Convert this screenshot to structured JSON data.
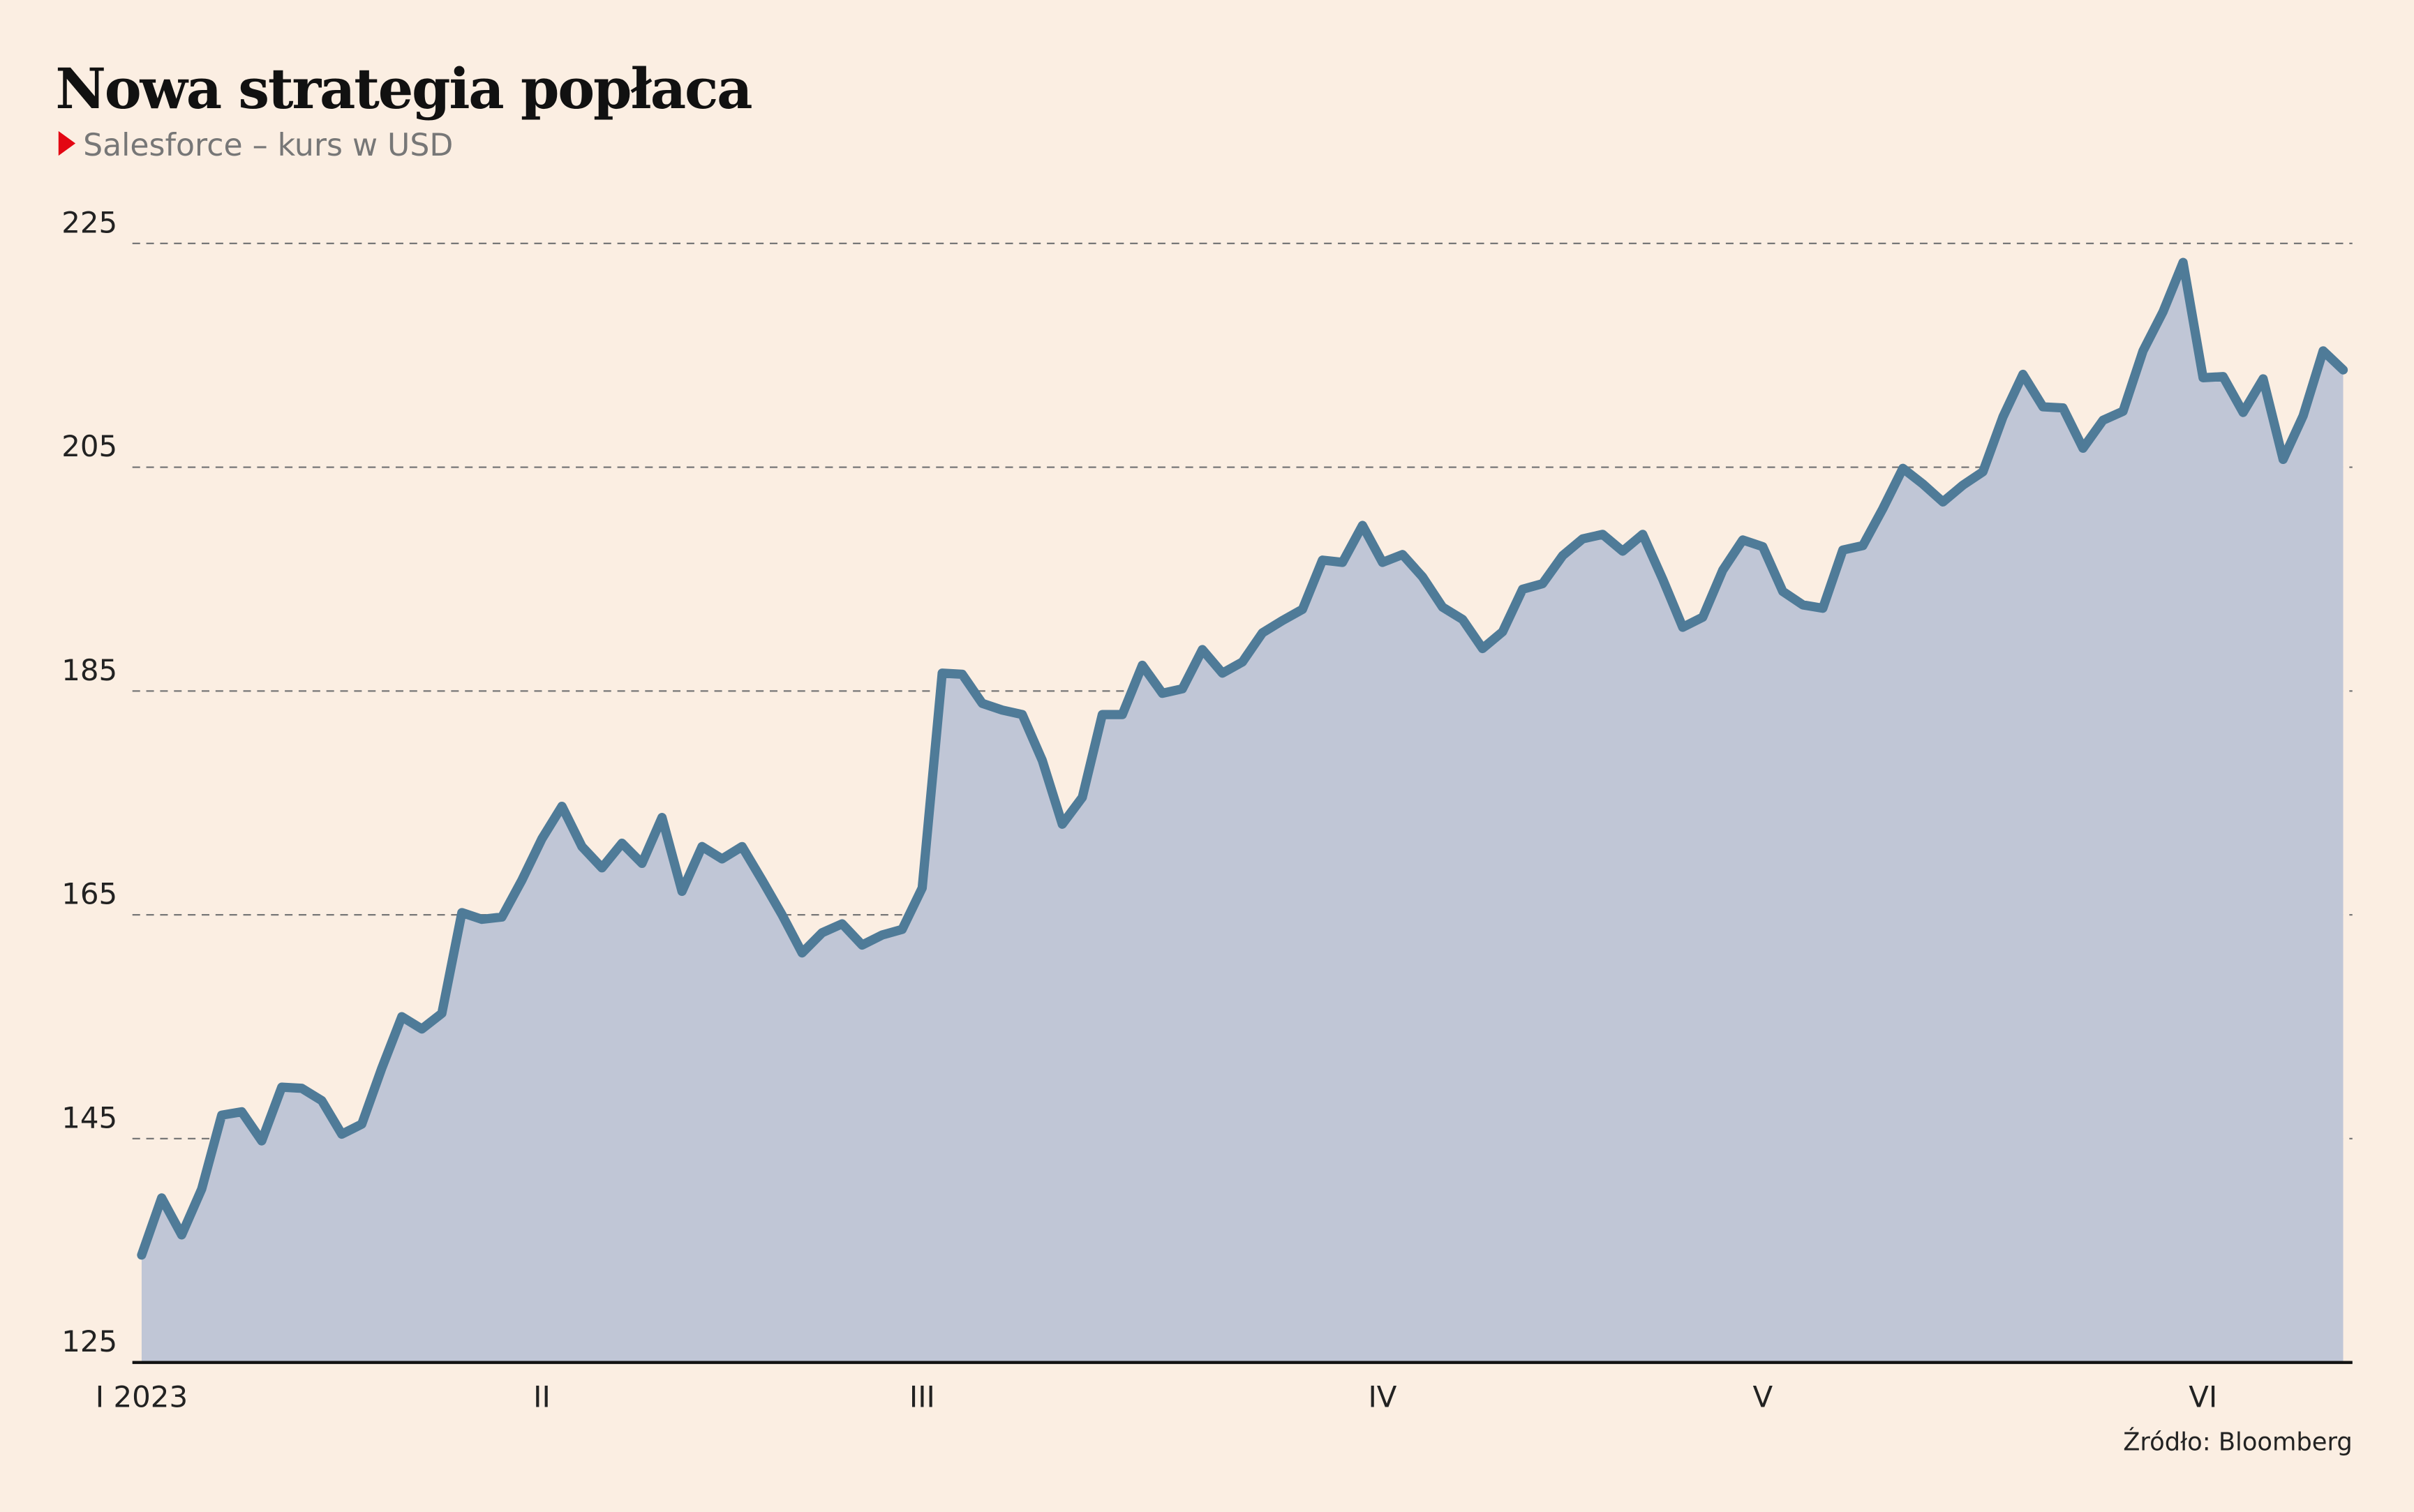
{
  "chart_data": {
    "type": "area",
    "title": "Nowa strategia popłaca",
    "subtitle": "Salesforce – kurs w USD",
    "source": "Źródło: Bloomberg",
    "categories": [
      "I 2023",
      null,
      null,
      null,
      null,
      null,
      null,
      null,
      null,
      null,
      null,
      null,
      null,
      null,
      null,
      null,
      null,
      null,
      null,
      null,
      "II",
      null,
      null,
      null,
      null,
      null,
      null,
      null,
      null,
      null,
      null,
      null,
      null,
      null,
      null,
      null,
      null,
      null,
      null,
      "III",
      null,
      null,
      null,
      null,
      null,
      null,
      null,
      null,
      null,
      null,
      null,
      null,
      null,
      null,
      null,
      null,
      null,
      null,
      null,
      null,
      null,
      null,
      "IV",
      null,
      null,
      null,
      null,
      null,
      null,
      null,
      null,
      null,
      null,
      null,
      null,
      null,
      null,
      null,
      null,
      null,
      null,
      "V",
      null,
      null,
      null,
      null,
      null,
      null,
      null,
      null,
      null,
      null,
      null,
      null,
      null,
      null,
      null,
      null,
      null,
      null,
      null,
      null,
      null,
      "VI",
      null,
      null,
      null,
      null,
      null,
      null,
      null
    ],
    "series": [
      {
        "name": "Salesforce",
        "color": "#4f7b98",
        "fill": "#c0c6d6",
        "values": [
          134.6,
          139.7,
          136.4,
          140.5,
          147.1,
          147.4,
          144.8,
          149.6,
          149.5,
          148.4,
          145.4,
          146.3,
          151.3,
          155.9,
          154.8,
          156.2,
          165.2,
          164.6,
          164.8,
          168.1,
          171.8,
          174.7,
          171.1,
          169.2,
          171.4,
          169.6,
          173.7,
          167.1,
          171.1,
          170.0,
          171.1,
          168.1,
          165.0,
          161.6,
          163.4,
          164.2,
          162.3,
          163.2,
          163.7,
          167.4,
          186.6,
          186.5,
          183.9,
          183.3,
          182.9,
          178.8,
          173.1,
          175.5,
          182.9,
          182.9,
          187.3,
          184.8,
          185.2,
          188.7,
          186.6,
          187.6,
          190.2,
          191.3,
          192.3,
          196.7,
          196.5,
          199.8,
          196.5,
          197.2,
          195.2,
          192.5,
          191.4,
          188.8,
          190.3,
          194.1,
          194.6,
          197.1,
          198.6,
          199.0,
          197.5,
          199.0,
          195.0,
          190.7,
          191.6,
          195.8,
          198.5,
          197.9,
          193.9,
          192.7,
          192.4,
          197.6,
          198.0,
          201.3,
          204.9,
          203.5,
          201.9,
          203.4,
          204.6,
          209.5,
          213.3,
          210.4,
          210.3,
          206.7,
          209.2,
          210.0,
          215.4,
          218.9,
          223.3,
          213.0,
          213.1,
          209.9,
          212.9,
          205.7,
          209.6,
          215.4,
          213.7
        ]
      }
    ],
    "ylim": [
      125,
      225
    ],
    "yticks": [
      125,
      145,
      165,
      185,
      205,
      225
    ],
    "grid": true
  }
}
